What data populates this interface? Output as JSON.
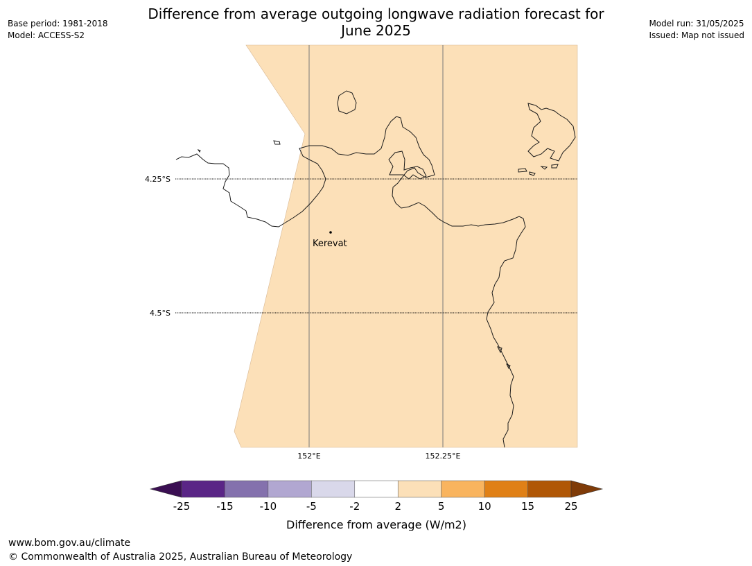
{
  "title_line1": "Difference from average outgoing longwave radiation forecast for",
  "title_line2": "June 2025",
  "meta_left": {
    "line1": "Base period: 1981-2018",
    "line2": "Model: ACCESS-S2"
  },
  "meta_right": {
    "line1": "Model run: 31/05/2025",
    "line2": "Issued: Map not issued"
  },
  "map": {
    "place_label": "Kerevat",
    "lat_labels": [
      "4.25°S",
      "4.5°S"
    ],
    "lon_labels": [
      "152°E",
      "152.25°E"
    ],
    "fill_color": "#fce0b8",
    "value_category": "2 to 5"
  },
  "colorbar": {
    "ticks": [
      "-25",
      "-15",
      "-10",
      "-5",
      "-2",
      "2",
      "5",
      "10",
      "15",
      "25"
    ],
    "colors": [
      "#3b0f53",
      "#5a2586",
      "#8471ad",
      "#b1a7d1",
      "#d9d8ea",
      "#ffffff",
      "#fce0b8",
      "#f9b45e",
      "#e08016",
      "#b05706",
      "#7f3b08"
    ],
    "label": "Difference from average (W/m2)"
  },
  "footer": {
    "url": "www.bom.gov.au/climate",
    "copyright": "© Commonwealth of Australia 2025, Australian Bureau of Meteorology"
  }
}
